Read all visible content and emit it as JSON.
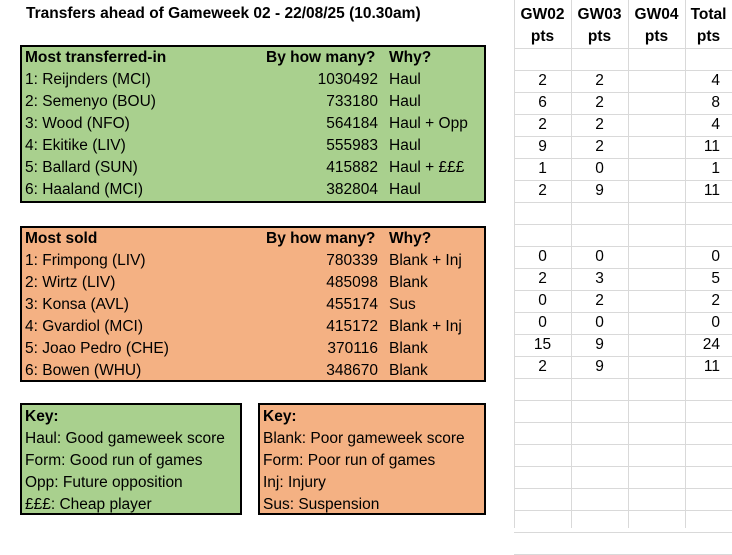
{
  "title": "Transfers ahead of Gameweek 02 - 22/08/25 (10.30am)",
  "transferred_in": {
    "headers": [
      "Most transferred-in",
      "By how many?",
      "Why?"
    ],
    "rows": [
      {
        "player": "1: Reijnders (MCI)",
        "count": "1030492",
        "why": "Haul"
      },
      {
        "player": "2: Semenyo (BOU)",
        "count": "733180",
        "why": "Haul"
      },
      {
        "player": "3: Wood (NFO)",
        "count": "564184",
        "why": "Haul + Opp"
      },
      {
        "player": "4: Ekitike (LIV)",
        "count": "555983",
        "why": "Haul"
      },
      {
        "player": "5: Ballard (SUN)",
        "count": "415882",
        "why": "Haul + £££"
      },
      {
        "player": "6: Haaland (MCI)",
        "count": "382804",
        "why": "Haul"
      }
    ]
  },
  "sold": {
    "headers": [
      "Most sold",
      "By how many?",
      "Why?"
    ],
    "rows": [
      {
        "player": "1: Frimpong (LIV)",
        "count": "780339",
        "why": "Blank + Inj"
      },
      {
        "player": "2: Wirtz (LIV)",
        "count": "485098",
        "why": "Blank"
      },
      {
        "player": "3: Konsa (AVL)",
        "count": "455174",
        "why": "Sus"
      },
      {
        "player": "4: Gvardiol (MCI)",
        "count": "415172",
        "why": "Blank + Inj"
      },
      {
        "player": "5: Joao Pedro (CHE)",
        "count": "370116",
        "why": "Blank"
      },
      {
        "player": "6: Bowen (WHU)",
        "count": "348670",
        "why": "Blank"
      }
    ]
  },
  "key_good": {
    "title": "Key:",
    "items": [
      "Haul: Good gameweek score",
      "Form: Good run of games",
      "Opp: Future opposition",
      "£££: Cheap player"
    ]
  },
  "key_bad": {
    "title": "Key:",
    "items": [
      "Blank: Poor gameweek score",
      "Form: Poor run of games",
      "Inj: Injury",
      "Sus: Suspension"
    ]
  },
  "points": {
    "headers": [
      {
        "line1": "GW02",
        "line2": "pts"
      },
      {
        "line1": "GW03",
        "line2": "pts"
      },
      {
        "line1": "GW04",
        "line2": "pts"
      },
      {
        "line1": "Total",
        "line2": "pts"
      }
    ],
    "in_rows": [
      [
        "2",
        "2",
        "",
        "4"
      ],
      [
        "6",
        "2",
        "",
        "8"
      ],
      [
        "2",
        "2",
        "",
        "4"
      ],
      [
        "9",
        "2",
        "",
        "11"
      ],
      [
        "1",
        "0",
        "",
        "1"
      ],
      [
        "2",
        "9",
        "",
        "11"
      ]
    ],
    "sold_rows": [
      [
        "0",
        "0",
        "",
        "0"
      ],
      [
        "2",
        "3",
        "",
        "5"
      ],
      [
        "0",
        "2",
        "",
        "2"
      ],
      [
        "0",
        "0",
        "",
        "0"
      ],
      [
        "15",
        "9",
        "",
        "24"
      ],
      [
        "2",
        "9",
        "",
        "11"
      ]
    ]
  },
  "colors": {
    "good": "#a9d08e",
    "bad": "#f4b183"
  }
}
